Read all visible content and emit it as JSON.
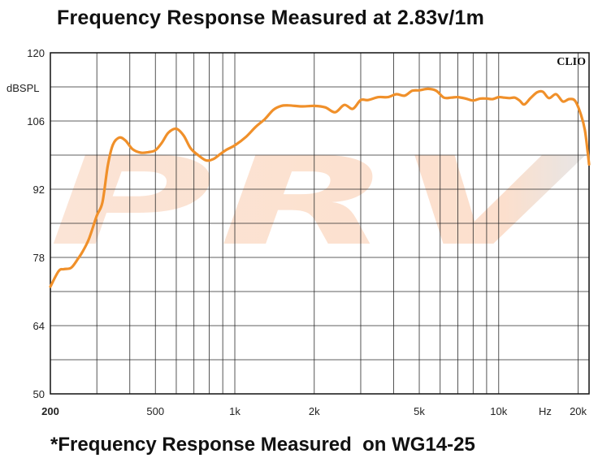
{
  "chart_data": {
    "type": "line",
    "title": "Frequency Response Measured at 2.83v/1m",
    "caption": "*Frequency Response Measured  on WG14-25",
    "ylabel": "dBSPL",
    "xunit": "Hz",
    "brand": "CLIO",
    "watermark": "PRV",
    "xscale": "log",
    "xlim": [
      200,
      22000
    ],
    "ylim": [
      50,
      120
    ],
    "x_tick_labels": [
      {
        "value": 200,
        "label": "200"
      },
      {
        "value": 500,
        "label": "500"
      },
      {
        "value": 1000,
        "label": "1k"
      },
      {
        "value": 2000,
        "label": "2k"
      },
      {
        "value": 5000,
        "label": "5k"
      },
      {
        "value": 10000,
        "label": "10k"
      },
      {
        "value": 20000,
        "label": "20k"
      }
    ],
    "y_ticks": [
      120,
      106,
      92,
      78,
      64,
      50
    ],
    "grid": true,
    "series": [
      {
        "color": "#f0902a",
        "x": [
          200,
          215,
          225,
          240,
          255,
          265,
          280,
          300,
          315,
          330,
          345,
          365,
          385,
          410,
          440,
          470,
          500,
          530,
          560,
          600,
          640,
          680,
          730,
          780,
          830,
          880,
          930,
          1000,
          1100,
          1200,
          1300,
          1400,
          1500,
          1600,
          1800,
          2000,
          2200,
          2400,
          2600,
          2800,
          3000,
          3200,
          3500,
          3800,
          4100,
          4400,
          4700,
          5000,
          5400,
          5800,
          6200,
          6600,
          7000,
          7500,
          8000,
          8500,
          9000,
          9500,
          10000,
          10500,
          11000,
          11500,
          12000,
          12500,
          13200,
          14000,
          14700,
          15500,
          16500,
          17500,
          18500,
          19500,
          20500,
          21200,
          21700,
          22000
        ],
        "y": [
          72.0,
          75.2,
          75.6,
          75.9,
          77.8,
          79.2,
          81.8,
          86.6,
          89.3,
          96.8,
          101.1,
          102.6,
          102.0,
          100.2,
          99.5,
          99.6,
          100.0,
          101.6,
          103.6,
          104.4,
          103.0,
          100.4,
          98.9,
          97.9,
          98.2,
          99.2,
          100.1,
          101.0,
          102.7,
          104.8,
          106.4,
          108.3,
          109.1,
          109.2,
          109.0,
          109.1,
          108.8,
          107.8,
          109.3,
          108.5,
          110.3,
          110.3,
          110.9,
          110.9,
          111.5,
          111.2,
          112.2,
          112.3,
          112.6,
          112.2,
          110.8,
          110.8,
          110.9,
          110.6,
          110.2,
          110.6,
          110.6,
          110.5,
          110.9,
          110.8,
          110.7,
          110.8,
          110.2,
          109.4,
          110.7,
          111.9,
          112.0,
          110.7,
          111.5,
          110.0,
          110.5,
          110.1,
          107.3,
          104.2,
          100.0,
          97.1
        ]
      }
    ]
  }
}
